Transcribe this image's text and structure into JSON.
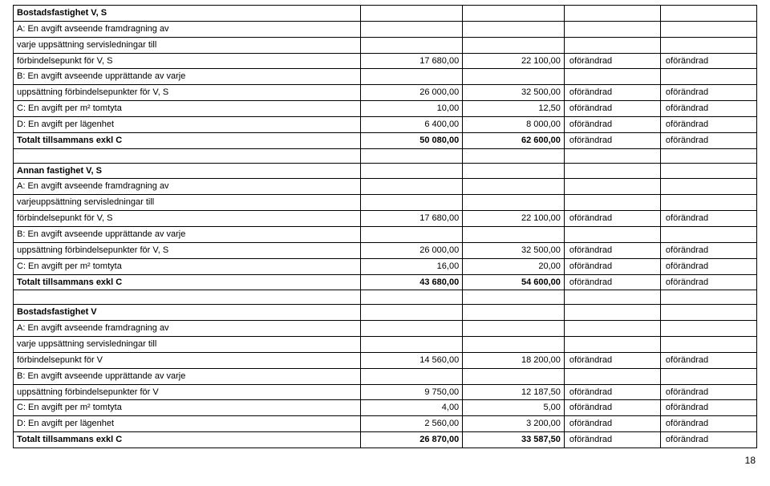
{
  "page_number": "18",
  "columns": [
    {
      "key": "desc",
      "class": "col-desc"
    },
    {
      "key": "n1",
      "class": "col-num"
    },
    {
      "key": "n2",
      "class": "col-num"
    },
    {
      "key": "t1",
      "class": "col-txt"
    },
    {
      "key": "t2",
      "class": "col-txt"
    }
  ],
  "rows": [
    {
      "bold": true,
      "desc": "Bostadsfastighet V, S",
      "n1": "",
      "n2": "",
      "t1": "",
      "t2": ""
    },
    {
      "bold": false,
      "desc": "A: En avgift avseende framdragning av",
      "n1": "",
      "n2": "",
      "t1": "",
      "t2": ""
    },
    {
      "bold": false,
      "desc": "varje uppsättning servisledningar till",
      "n1": "",
      "n2": "",
      "t1": "",
      "t2": ""
    },
    {
      "bold": false,
      "desc": "förbindelsepunkt för V, S",
      "n1": "17 680,00",
      "n2": "22 100,00",
      "t1": "oförändrad",
      "t2": "oförändrad"
    },
    {
      "bold": false,
      "desc": "B: En avgift avseende upprättande av varje",
      "n1": "",
      "n2": "",
      "t1": "",
      "t2": ""
    },
    {
      "bold": false,
      "desc": "uppsättning förbindelsepunkter för V, S",
      "n1": "26 000,00",
      "n2": "32 500,00",
      "t1": "oförändrad",
      "t2": "oförändrad"
    },
    {
      "bold": false,
      "desc": "C: En avgift per m² tomtyta",
      "n1": "10,00",
      "n2": "12,50",
      "t1": "oförändrad",
      "t2": "oförändrad"
    },
    {
      "bold": false,
      "desc": "D: En avgift per lägenhet",
      "n1": "6 400,00",
      "n2": "8 000,00",
      "t1": "oförändrad",
      "t2": "oförändrad"
    },
    {
      "bold": true,
      "desc": "Totalt tillsammans exkl C",
      "n1": "50 080,00",
      "n2": "62 600,00",
      "t1": "oförändrad",
      "t2": "oförändrad"
    },
    {
      "bold": false,
      "desc": "",
      "n1": "",
      "n2": "",
      "t1": "",
      "t2": ""
    },
    {
      "bold": true,
      "desc": "Annan fastighet V, S",
      "n1": "",
      "n2": "",
      "t1": "",
      "t2": ""
    },
    {
      "bold": false,
      "desc": "A: En avgift avseende framdragning av",
      "n1": "",
      "n2": "",
      "t1": "",
      "t2": ""
    },
    {
      "bold": false,
      "desc": "varjeuppsättning servisledningar till",
      "n1": "",
      "n2": "",
      "t1": "",
      "t2": ""
    },
    {
      "bold": false,
      "desc": "förbindelsepunkt för V, S",
      "n1": "17 680,00",
      "n2": "22 100,00",
      "t1": "oförändrad",
      "t2": "oförändrad"
    },
    {
      "bold": false,
      "desc": "B: En avgift avseende upprättande av varje",
      "n1": "",
      "n2": "",
      "t1": "",
      "t2": ""
    },
    {
      "bold": false,
      "desc": "uppsättning förbindelsepunkter för V, S",
      "n1": "26 000,00",
      "n2": "32 500,00",
      "t1": "oförändrad",
      "t2": "oförändrad"
    },
    {
      "bold": false,
      "desc": "C: En avgift per m² tomtyta",
      "n1": "16,00",
      "n2": "20,00",
      "t1": "oförändrad",
      "t2": "oförändrad"
    },
    {
      "bold": true,
      "desc": "Totalt tillsammans exkl C",
      "n1": "43 680,00",
      "n2": "54 600,00",
      "t1": "oförändrad",
      "t2": "oförändrad"
    },
    {
      "bold": false,
      "desc": "",
      "n1": "",
      "n2": "",
      "t1": "",
      "t2": ""
    },
    {
      "bold": true,
      "desc": "Bostadsfastighet V",
      "n1": "",
      "n2": "",
      "t1": "",
      "t2": ""
    },
    {
      "bold": false,
      "desc": "A: En avgift avseende framdragning av",
      "n1": "",
      "n2": "",
      "t1": "",
      "t2": ""
    },
    {
      "bold": false,
      "desc": "varje uppsättning servisledningar till",
      "n1": "",
      "n2": "",
      "t1": "",
      "t2": ""
    },
    {
      "bold": false,
      "desc": "förbindelsepunkt för V",
      "n1": "14 560,00",
      "n2": "18 200,00",
      "t1": "oförändrad",
      "t2": "oförändrad"
    },
    {
      "bold": false,
      "desc": "B: En avgift avseende upprättande av varje",
      "n1": "",
      "n2": "",
      "t1": "",
      "t2": ""
    },
    {
      "bold": false,
      "desc": "uppsättning förbindelsepunkter för V",
      "n1": "9 750,00",
      "n2": "12 187,50",
      "t1": "oförändrad",
      "t2": "oförändrad"
    },
    {
      "bold": false,
      "desc": "C: En avgift per m² tomtyta",
      "n1": "4,00",
      "n2": "5,00",
      "t1": "oförändrad",
      "t2": "oförändrad"
    },
    {
      "bold": false,
      "desc": "D: En avgift per lägenhet",
      "n1": "2 560,00",
      "n2": "3 200,00",
      "t1": "oförändrad",
      "t2": "oförändrad"
    },
    {
      "bold": true,
      "desc": "Totalt tillsammans exkl C",
      "n1": "26 870,00",
      "n2": "33 587,50",
      "t1": "oförändrad",
      "t2": "oförändrad"
    }
  ]
}
